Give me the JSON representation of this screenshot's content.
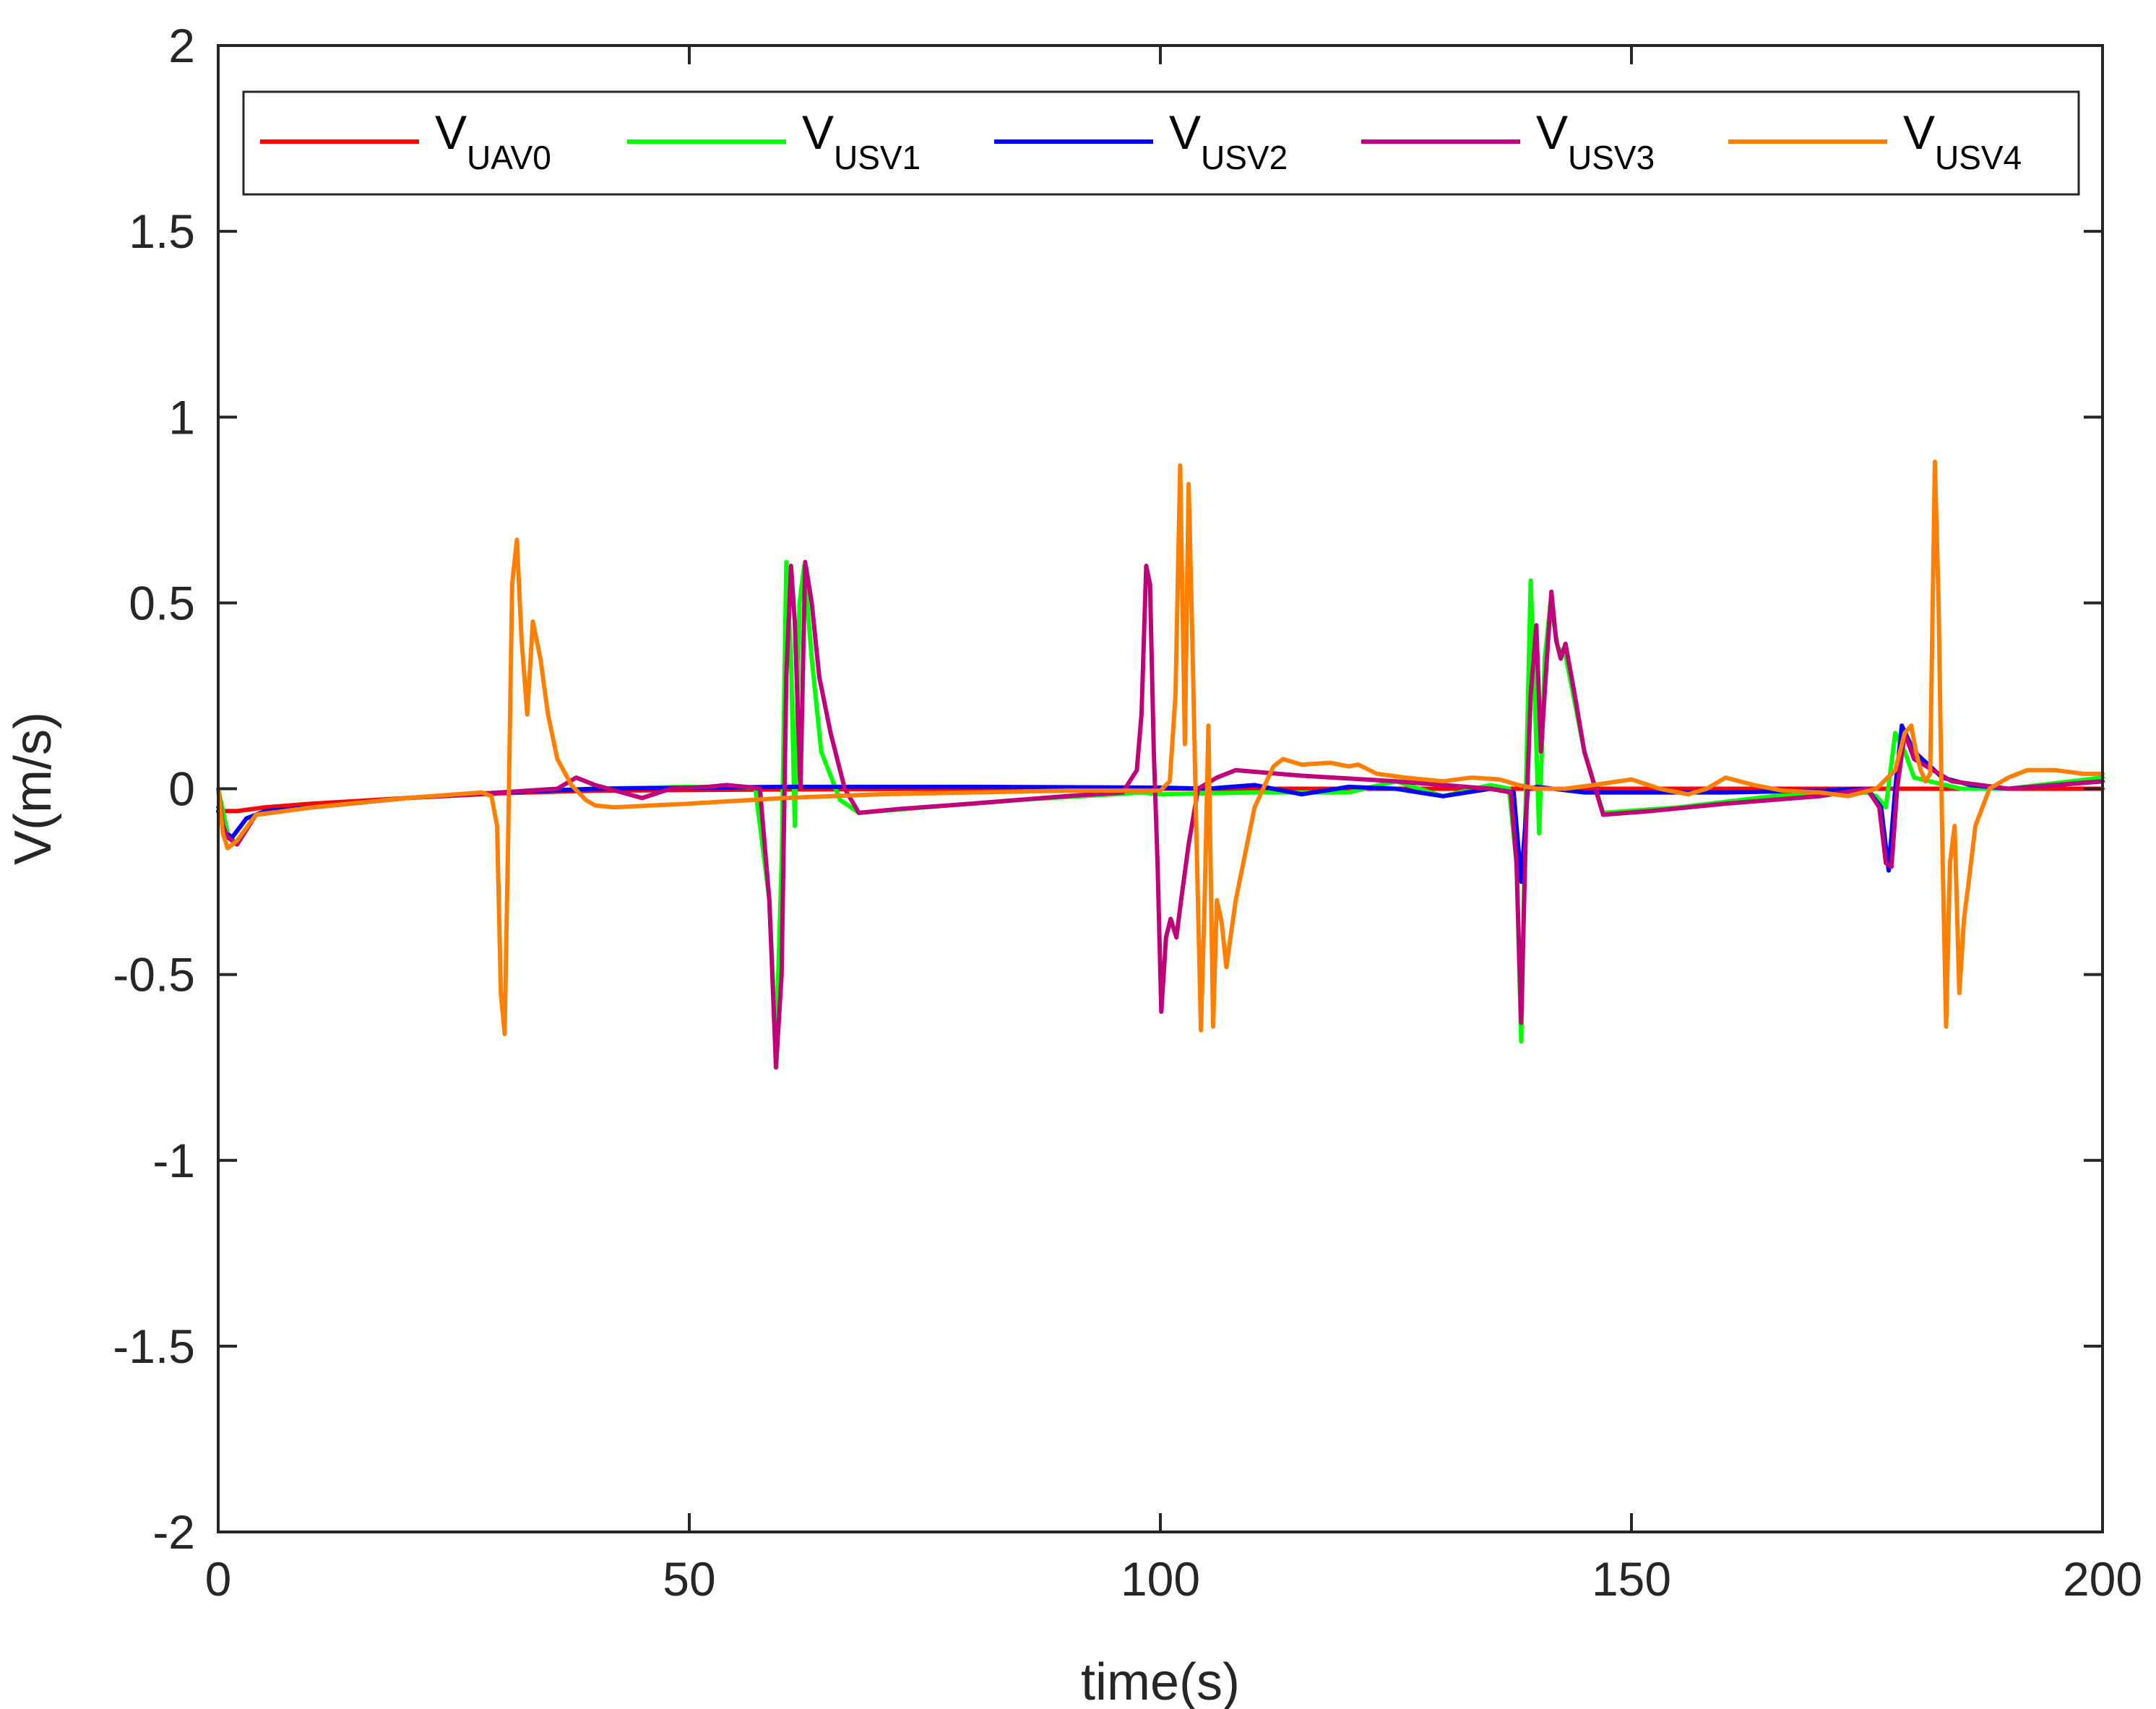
{
  "chart_data": {
    "type": "line",
    "title": "",
    "xlabel": "time(s)",
    "ylabel": "V(m/s)",
    "xlim": [
      0,
      200
    ],
    "ylim": [
      -2,
      2
    ],
    "xticks": [
      0,
      50,
      100,
      150,
      200
    ],
    "xtick_labels": [
      "0",
      "50",
      "100",
      "150",
      "200"
    ],
    "yticks": [
      -2,
      -1.5,
      -1,
      -0.5,
      0,
      0.5,
      1,
      1.5,
      2
    ],
    "ytick_labels": [
      "-2",
      "-1.5",
      "-1",
      "-0.5",
      "0",
      "0.5",
      "1",
      "1.5",
      "2"
    ],
    "grid": false,
    "legend_position": "top",
    "series": [
      {
        "name": "V",
        "subscript": "UAV0",
        "color": "#ff0000",
        "x": [
          0,
          0.5,
          2,
          5,
          10,
          20,
          30,
          40,
          60,
          80,
          100,
          120,
          140,
          160,
          180,
          200
        ],
        "y": [
          -0.05,
          -0.06,
          -0.06,
          -0.05,
          -0.04,
          -0.025,
          -0.012,
          -0.005,
          -0.002,
          0.0,
          0.0,
          0.0,
          0.0,
          0.0,
          0.0,
          0.0
        ]
      },
      {
        "name": "V",
        "subscript": "USV1",
        "color": "#00ff00",
        "x": [
          0,
          1,
          2,
          4,
          10,
          20,
          30,
          40,
          50,
          57,
          58.5,
          59.2,
          59.8,
          60.3,
          60.8,
          61.2,
          61.7,
          62.2,
          63,
          64,
          66,
          68,
          75,
          85,
          95,
          98,
          100,
          110,
          120,
          125,
          130,
          135,
          137,
          137.8,
          138.3,
          138.8,
          139.3,
          139.8,
          140.2,
          140.8,
          141.4,
          142.2,
          143,
          145,
          147,
          155,
          165,
          175,
          176,
          177,
          178,
          179,
          180,
          185,
          190,
          200
        ],
        "y": [
          0,
          -0.12,
          -0.15,
          -0.07,
          -0.05,
          -0.025,
          -0.01,
          0.0,
          0.005,
          0.003,
          -0.3,
          -0.7,
          -0.2,
          0.61,
          0.35,
          -0.1,
          0.5,
          0.6,
          0.35,
          0.1,
          -0.03,
          -0.065,
          -0.05,
          -0.03,
          -0.015,
          -0.01,
          -0.015,
          -0.01,
          -0.01,
          0.02,
          -0.02,
          0.01,
          0.0,
          -0.2,
          -0.68,
          0.0,
          0.56,
          0.2,
          -0.12,
          0.35,
          0.5,
          0.38,
          0.36,
          0.1,
          -0.065,
          -0.05,
          -0.02,
          -0.01,
          -0.02,
          -0.05,
          0.15,
          0.1,
          0.03,
          0.0,
          0.0,
          0.03
        ]
      },
      {
        "name": "V",
        "subscript": "USV2",
        "color": "#0000ff",
        "x": [
          0,
          0.8,
          1.5,
          3,
          5,
          10,
          20,
          30,
          40,
          60,
          80,
          100,
          105,
          110,
          115,
          120,
          125,
          130,
          135,
          137.5,
          138.3,
          139,
          140,
          145,
          150,
          160,
          170,
          175,
          176.5,
          177.3,
          178,
          178.7,
          180,
          183,
          186,
          190,
          200
        ],
        "y": [
          -0.06,
          -0.12,
          -0.13,
          -0.08,
          -0.06,
          -0.05,
          -0.025,
          -0.01,
          0.0,
          0.005,
          0.005,
          0.003,
          0.0,
          0.01,
          -0.015,
          0.005,
          0.0,
          -0.02,
          0.0,
          -0.01,
          -0.25,
          0.0,
          0.005,
          -0.01,
          -0.01,
          -0.01,
          -0.005,
          0.0,
          -0.05,
          -0.22,
          0.0,
          0.17,
          0.1,
          0.03,
          0.01,
          0.0,
          0.02
        ]
      },
      {
        "name": "V",
        "subscript": "USV3",
        "color": "#c0007a",
        "x": [
          0,
          0.5,
          1,
          2,
          4,
          10,
          20,
          30,
          36,
          38,
          40,
          45,
          48,
          52,
          54,
          56,
          57.5,
          58.5,
          59.2,
          59.8,
          60.3,
          60.8,
          61.2,
          61.8,
          62.3,
          63,
          63.8,
          65,
          66.5,
          68,
          72,
          80,
          90,
          96,
          97.5,
          98,
          98.5,
          98.9,
          99.3,
          99.7,
          100.1,
          100.6,
          101.1,
          101.7,
          102.2,
          103,
          104,
          106,
          108,
          115,
          125,
          135,
          137.2,
          137.8,
          138.3,
          138.8,
          139.3,
          139.9,
          140.4,
          140.9,
          141.5,
          142,
          142.5,
          143,
          144,
          145,
          147,
          152,
          160,
          170,
          175,
          176.3,
          177,
          177.6,
          178.2,
          179,
          180,
          184,
          190,
          200
        ],
        "y": [
          0,
          -0.1,
          -0.13,
          -0.15,
          -0.07,
          -0.05,
          -0.025,
          -0.01,
          0.0,
          0.03,
          0.01,
          -0.025,
          0.0,
          0.005,
          0.01,
          0.005,
          0.0,
          -0.3,
          -0.75,
          -0.5,
          0.3,
          0.6,
          0.45,
          0.0,
          0.61,
          0.5,
          0.3,
          0.15,
          0.0,
          -0.065,
          -0.055,
          -0.04,
          -0.02,
          -0.01,
          0.05,
          0.2,
          0.6,
          0.55,
          0.1,
          -0.2,
          -0.6,
          -0.4,
          -0.35,
          -0.4,
          -0.3,
          -0.15,
          0.0,
          0.03,
          0.05,
          0.035,
          0.02,
          0.0,
          -0.01,
          -0.2,
          -0.63,
          -0.1,
          0.25,
          0.44,
          0.1,
          0.3,
          0.53,
          0.4,
          0.35,
          0.39,
          0.25,
          0.1,
          -0.07,
          -0.06,
          -0.04,
          -0.02,
          0.0,
          -0.05,
          -0.2,
          -0.21,
          0.0,
          0.15,
          0.08,
          0.02,
          0.0,
          0.02
        ]
      },
      {
        "name": "V",
        "subscript": "USV4",
        "color": "#ff8000",
        "x": [
          0,
          0.5,
          1,
          2,
          4,
          10,
          20,
          28,
          29,
          29.6,
          30,
          30.4,
          30.8,
          31.2,
          31.7,
          32.2,
          32.8,
          33.4,
          34.2,
          35,
          36,
          37.5,
          39,
          40,
          42,
          50,
          60,
          70,
          80,
          90,
          100,
          101,
          101.6,
          102.1,
          102.6,
          103,
          103.4,
          103.8,
          104.3,
          104.7,
          105.1,
          105.6,
          106,
          106.5,
          107,
          108,
          110,
          112,
          113,
          115,
          118,
          120,
          121,
          123,
          126,
          130,
          133,
          136,
          138,
          140,
          143,
          146,
          150,
          153,
          156,
          158,
          160,
          163,
          166,
          170,
          173,
          176,
          178,
          179,
          179.7,
          180.2,
          180.7,
          181.2,
          181.7,
          182.2,
          182.6,
          183,
          183.4,
          183.8,
          184.3,
          184.8,
          185.3,
          185.8,
          186.5,
          188,
          190,
          192,
          195,
          198,
          200
        ],
        "y": [
          0,
          -0.12,
          -0.16,
          -0.14,
          -0.07,
          -0.05,
          -0.025,
          -0.01,
          -0.02,
          -0.1,
          -0.55,
          -0.66,
          -0.1,
          0.55,
          0.67,
          0.4,
          0.2,
          0.45,
          0.35,
          0.2,
          0.08,
          0.01,
          -0.03,
          -0.045,
          -0.05,
          -0.04,
          -0.025,
          -0.015,
          -0.01,
          -0.005,
          -0.005,
          0.02,
          0.25,
          0.87,
          0.12,
          0.82,
          0.4,
          -0.1,
          -0.65,
          -0.3,
          0.17,
          -0.64,
          -0.3,
          -0.36,
          -0.48,
          -0.3,
          -0.05,
          0.06,
          0.08,
          0.065,
          0.07,
          0.06,
          0.065,
          0.04,
          0.03,
          0.02,
          0.03,
          0.025,
          0.01,
          0.0,
          0.0,
          0.01,
          0.025,
          0.0,
          -0.015,
          0.0,
          0.03,
          0.01,
          -0.005,
          -0.01,
          -0.02,
          0.0,
          0.05,
          0.15,
          0.17,
          0.1,
          0.05,
          0.02,
          0.04,
          0.88,
          0.5,
          -0.15,
          -0.64,
          -0.2,
          -0.1,
          -0.55,
          -0.35,
          -0.25,
          -0.1,
          0.0,
          0.03,
          0.05,
          0.05,
          0.04,
          0.04
        ]
      }
    ]
  }
}
